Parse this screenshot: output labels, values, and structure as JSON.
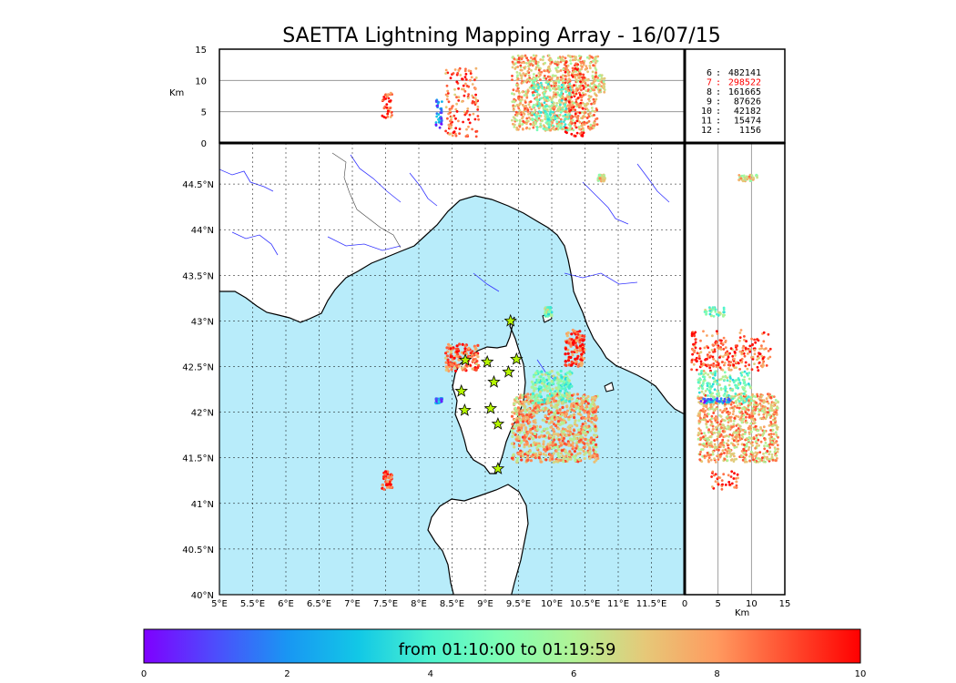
{
  "title": "SAETTA Lightning Mapping Array - 16/07/15",
  "colors": {
    "sea": "#b8ecfa",
    "land": "#ffffff",
    "river": "#3333ff",
    "legend_highlight": "#ff0000",
    "station": "#b5f500"
  },
  "altitude_panel": {
    "ylabel": "Km",
    "ytick_labels": [
      "15",
      "10",
      "5",
      "0"
    ],
    "ylim": [
      0,
      15
    ]
  },
  "side_panel": {
    "xlabel": "Km",
    "xtick_labels": [
      "0",
      "5",
      "10",
      "15"
    ],
    "xlim": [
      0,
      15
    ]
  },
  "map": {
    "lon_labels": [
      "5°E",
      "5.5°E",
      "6°E",
      "6.5°E",
      "7°E",
      "7.5°E",
      "8°E",
      "8.5°E",
      "9°E",
      "9.5°E",
      "10°E",
      "10.5°E",
      "11°E",
      "11.5°E"
    ],
    "lat_labels": [
      "40°N",
      "40.5°N",
      "41°N",
      "41.5°N",
      "42°N",
      "42.5°N",
      "43°N",
      "43.5°N",
      "44°N",
      "44.5°N"
    ],
    "lon_range": [
      5,
      12
    ],
    "lat_range": [
      40,
      44.95
    ],
    "station_marker": "star-icon"
  },
  "legend": {
    "rows": [
      {
        "k": "6",
        "v": "482141",
        "highlight": false
      },
      {
        "k": "7",
        "v": "298522",
        "highlight": true
      },
      {
        "k": "8",
        "v": "161665",
        "highlight": false
      },
      {
        "k": "9",
        "v": "87626",
        "highlight": false
      },
      {
        "k": "10",
        "v": "42182",
        "highlight": false
      },
      {
        "k": "11",
        "v": "15474",
        "highlight": false
      },
      {
        "k": "12",
        "v": "1156",
        "highlight": false
      }
    ]
  },
  "colorbar": {
    "label": "from 01:10:00 to 01:19:59",
    "tick_labels": [
      "0",
      "2",
      "4",
      "6",
      "8",
      "10"
    ],
    "range": [
      0,
      10
    ]
  },
  "chart_data": {
    "type": "scatter",
    "title": "SAETTA Lightning Mapping Array - 16/07/15",
    "xlabel": "",
    "ylabel": "",
    "xlim": [
      5,
      12
    ],
    "ylim": [
      40,
      44.95
    ],
    "grid": true,
    "stations": [
      {
        "lon": 8.7,
        "lat": 42.57
      },
      {
        "lon": 9.03,
        "lat": 42.55
      },
      {
        "lon": 9.47,
        "lat": 42.58
      },
      {
        "lon": 9.13,
        "lat": 42.33
      },
      {
        "lon": 9.35,
        "lat": 42.44
      },
      {
        "lon": 8.64,
        "lat": 42.23
      },
      {
        "lon": 8.69,
        "lat": 42.02
      },
      {
        "lon": 9.08,
        "lat": 42.04
      },
      {
        "lon": 9.19,
        "lat": 41.87
      },
      {
        "lon": 9.19,
        "lat": 41.38
      },
      {
        "lon": 9.38,
        "lat": 43.0
      }
    ],
    "source_clusters": [
      {
        "lon_range": [
          9.4,
          10.7
        ],
        "lat_range": [
          41.45,
          42.2
        ],
        "time_min": 7.5,
        "alt_km": [
          2,
          14
        ]
      },
      {
        "lon_range": [
          8.4,
          8.9
        ],
        "lat_range": [
          42.45,
          42.75
        ],
        "time_min": 8.5,
        "alt_km": [
          1,
          12
        ]
      },
      {
        "lon_range": [
          9.7,
          10.3
        ],
        "lat_range": [
          42.1,
          42.45
        ],
        "time_min": 5.0,
        "alt_km": [
          2,
          10
        ]
      },
      {
        "lon_range": [
          10.2,
          10.5
        ],
        "lat_range": [
          42.5,
          42.9
        ],
        "time_min": 9.0,
        "alt_km": [
          1,
          13
        ]
      },
      {
        "lon_range": [
          7.45,
          7.6
        ],
        "lat_range": [
          41.15,
          41.35
        ],
        "time_min": 9.2,
        "alt_km": [
          4,
          8
        ]
      },
      {
        "lon_range": [
          9.9,
          10.0
        ],
        "lat_range": [
          43.05,
          43.15
        ],
        "time_min": 5.0,
        "alt_km": [
          3,
          6
        ]
      },
      {
        "lon_range": [
          10.7,
          10.8
        ],
        "lat_range": [
          44.53,
          44.6
        ],
        "time_min": 6.8,
        "alt_km": [
          8,
          11
        ]
      },
      {
        "lon_range": [
          8.25,
          8.35
        ],
        "lat_range": [
          42.1,
          42.15
        ],
        "time_min": 1.5,
        "alt_km": [
          2,
          7
        ]
      }
    ]
  }
}
